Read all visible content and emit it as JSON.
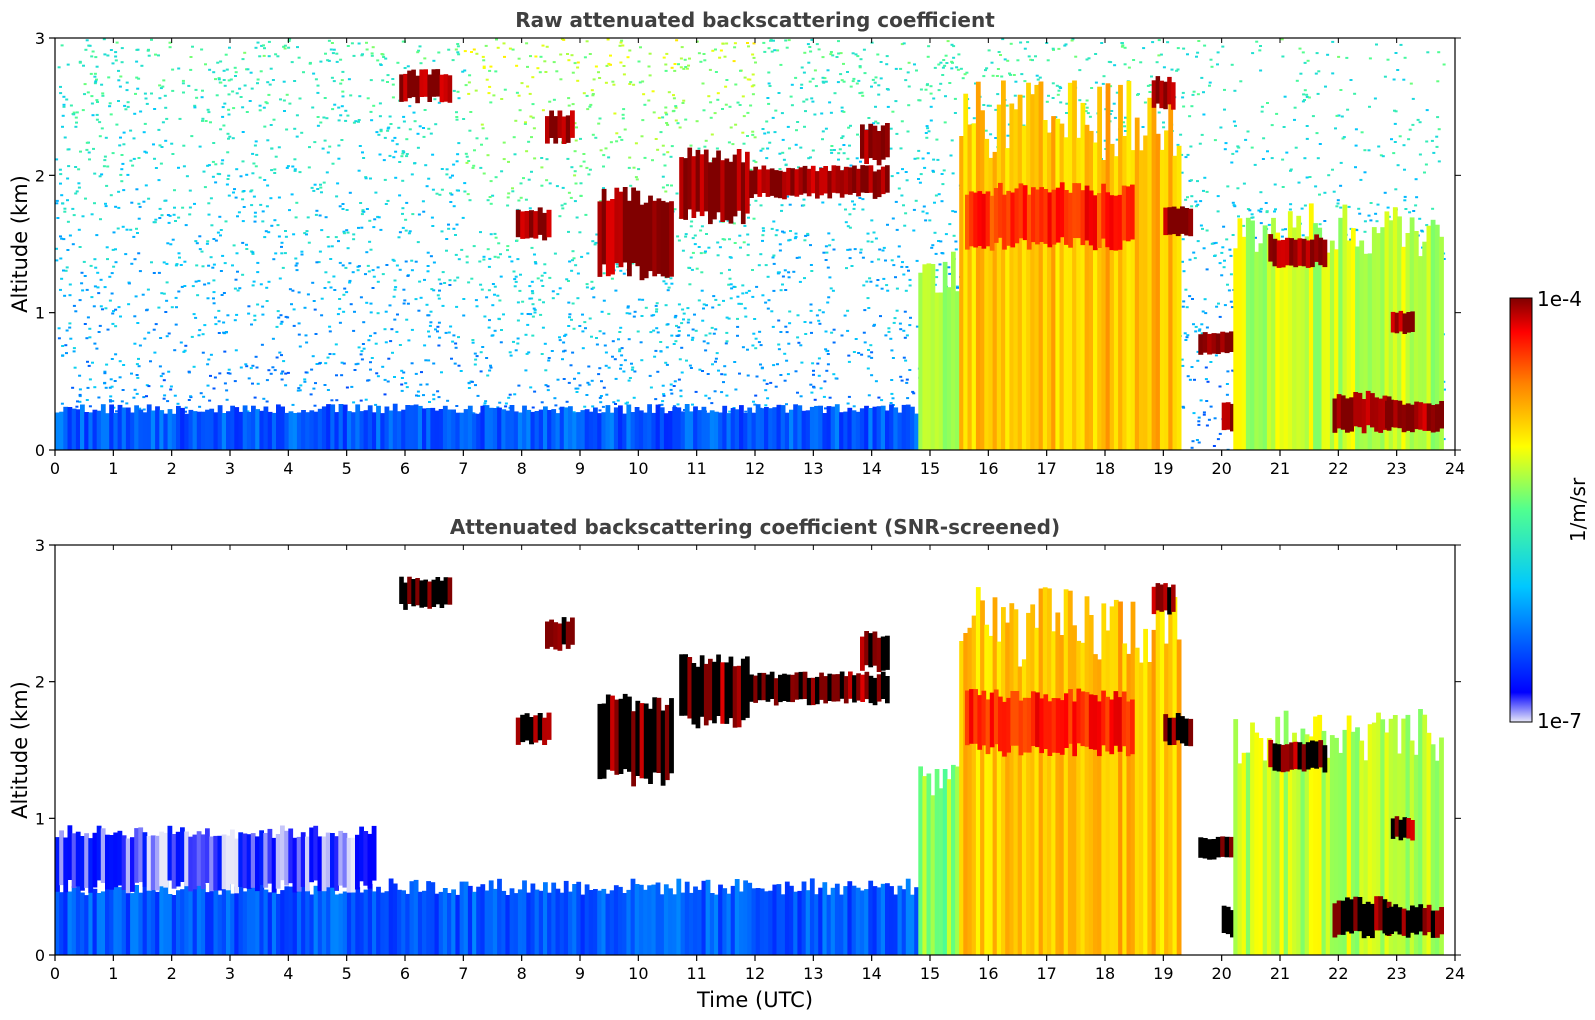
{
  "chart_data": [
    {
      "type": "heatmap",
      "title": "Raw attenuated backscattering coefficient",
      "xlabel": "",
      "ylabel": "Altitude (km)",
      "xlim": [
        0,
        24
      ],
      "ylim": [
        0,
        3
      ],
      "xticks": [
        0,
        1,
        2,
        3,
        4,
        5,
        6,
        7,
        8,
        9,
        10,
        11,
        12,
        13,
        14,
        15,
        16,
        17,
        18,
        19,
        20,
        21,
        22,
        23,
        24
      ],
      "yticks": [
        0,
        1,
        2,
        3
      ],
      "screened": false,
      "layers": [
        {
          "t0": 0.0,
          "t1": 14.8,
          "z0": 0.0,
          "z1": 0.3,
          "level": 0.18,
          "desc": "boundary layer"
        },
        {
          "t0": 5.9,
          "t1": 6.8,
          "z0": 2.55,
          "z1": 2.75,
          "level": 1.0
        },
        {
          "t0": 8.4,
          "t1": 8.9,
          "z0": 2.25,
          "z1": 2.45,
          "level": 1.0
        },
        {
          "t0": 7.9,
          "t1": 8.5,
          "z0": 1.55,
          "z1": 1.75,
          "level": 1.0
        },
        {
          "t0": 9.3,
          "t1": 10.6,
          "z0": 1.3,
          "z1": 1.85,
          "level": 1.0
        },
        {
          "t0": 10.7,
          "t1": 11.9,
          "z0": 1.7,
          "z1": 2.15,
          "level": 1.0
        },
        {
          "t0": 11.9,
          "t1": 14.3,
          "z0": 1.85,
          "z1": 2.05,
          "level": 1.0
        },
        {
          "t0": 13.8,
          "t1": 14.3,
          "z0": 2.1,
          "z1": 2.35,
          "level": 1.0
        },
        {
          "t0": 14.8,
          "t1": 15.5,
          "z0": 0.0,
          "z1": 1.3,
          "level": 0.55
        },
        {
          "t0": 15.5,
          "t1": 19.3,
          "z0": 0.0,
          "z1": 2.4,
          "level": 0.72
        },
        {
          "t0": 15.6,
          "t1": 18.5,
          "z0": 1.5,
          "z1": 1.9,
          "level": 0.88
        },
        {
          "t0": 18.8,
          "t1": 19.2,
          "z0": 2.5,
          "z1": 2.7,
          "level": 1.0
        },
        {
          "t0": 19.0,
          "t1": 19.5,
          "z0": 1.55,
          "z1": 1.75,
          "level": 1.0
        },
        {
          "t0": 19.6,
          "t1": 20.2,
          "z0": 0.7,
          "z1": 0.85,
          "level": 1.0
        },
        {
          "t0": 20.0,
          "t1": 21.5,
          "z0": 0.15,
          "z1": 0.35,
          "level": 1.0
        },
        {
          "t0": 20.2,
          "t1": 23.8,
          "z0": 0.0,
          "z1": 1.6,
          "level": 0.6
        },
        {
          "t0": 20.8,
          "t1": 21.8,
          "z0": 1.35,
          "z1": 1.55,
          "level": 1.0
        },
        {
          "t0": 21.9,
          "t1": 22.9,
          "z0": 0.15,
          "z1": 0.4,
          "level": 1.0
        },
        {
          "t0": 22.8,
          "t1": 23.8,
          "z0": 0.15,
          "z1": 0.35,
          "level": 1.0
        },
        {
          "t0": 22.9,
          "t1": 23.3,
          "z0": 0.85,
          "z1": 1.0,
          "level": 1.0
        }
      ]
    },
    {
      "type": "heatmap",
      "title": "Attenuated backscattering coefficient (SNR-screened)",
      "xlabel": "Time (UTC)",
      "ylabel": "Altitude (km)",
      "xlim": [
        0,
        24
      ],
      "ylim": [
        0,
        3
      ],
      "xticks": [
        0,
        1,
        2,
        3,
        4,
        5,
        6,
        7,
        8,
        9,
        10,
        11,
        12,
        13,
        14,
        15,
        16,
        17,
        18,
        19,
        20,
        21,
        22,
        23,
        24
      ],
      "yticks": [
        0,
        1,
        2,
        3
      ],
      "screened": true,
      "layers": [
        {
          "t0": 0.0,
          "t1": 14.8,
          "z0": 0.0,
          "z1": 0.5,
          "level": 0.18
        },
        {
          "t0": 0.0,
          "t1": 5.5,
          "z0": 0.5,
          "z1": 0.9,
          "level": 0.05
        },
        {
          "t0": 5.9,
          "t1": 6.8,
          "z0": 2.55,
          "z1": 2.75,
          "level": 1.0
        },
        {
          "t0": 8.4,
          "t1": 8.9,
          "z0": 2.25,
          "z1": 2.45,
          "level": 1.0
        },
        {
          "t0": 7.9,
          "t1": 8.5,
          "z0": 1.55,
          "z1": 1.75,
          "level": 1.0
        },
        {
          "t0": 9.3,
          "t1": 10.6,
          "z0": 1.3,
          "z1": 1.85,
          "level": 1.0
        },
        {
          "t0": 10.7,
          "t1": 11.9,
          "z0": 1.7,
          "z1": 2.15,
          "level": 1.0
        },
        {
          "t0": 11.9,
          "t1": 14.3,
          "z0": 1.85,
          "z1": 2.05,
          "level": 1.0
        },
        {
          "t0": 13.8,
          "t1": 14.3,
          "z0": 2.1,
          "z1": 2.35,
          "level": 1.0
        },
        {
          "t0": 14.8,
          "t1": 15.5,
          "z0": 0.0,
          "z1": 1.3,
          "level": 0.55
        },
        {
          "t0": 15.5,
          "t1": 19.3,
          "z0": 0.0,
          "z1": 2.4,
          "level": 0.72
        },
        {
          "t0": 15.6,
          "t1": 18.5,
          "z0": 1.5,
          "z1": 1.9,
          "level": 0.88
        },
        {
          "t0": 18.8,
          "t1": 19.2,
          "z0": 2.5,
          "z1": 2.7,
          "level": 1.0
        },
        {
          "t0": 19.0,
          "t1": 19.5,
          "z0": 1.55,
          "z1": 1.75,
          "level": 1.0
        },
        {
          "t0": 19.6,
          "t1": 20.2,
          "z0": 0.7,
          "z1": 0.85,
          "level": 1.0
        },
        {
          "t0": 20.0,
          "t1": 21.5,
          "z0": 0.15,
          "z1": 0.35,
          "level": 1.0
        },
        {
          "t0": 20.2,
          "t1": 23.8,
          "z0": 0.0,
          "z1": 1.6,
          "level": 0.6
        },
        {
          "t0": 20.8,
          "t1": 21.8,
          "z0": 1.35,
          "z1": 1.55,
          "level": 1.0
        },
        {
          "t0": 21.9,
          "t1": 22.9,
          "z0": 0.15,
          "z1": 0.4,
          "level": 1.0
        },
        {
          "t0": 22.8,
          "t1": 23.8,
          "z0": 0.15,
          "z1": 0.35,
          "level": 1.0
        },
        {
          "t0": 22.9,
          "t1": 23.3,
          "z0": 0.85,
          "z1": 1.0,
          "level": 1.0
        }
      ]
    }
  ],
  "colorbar": {
    "label": "1/m/sr",
    "max_label": "1e-4",
    "min_label": "1e-7",
    "scale": "log",
    "colormap": [
      "#e8e8f8",
      "#0000ff",
      "#00c8ff",
      "#50ff90",
      "#ffff00",
      "#ff8000",
      "#ff0000",
      "#800000"
    ]
  }
}
